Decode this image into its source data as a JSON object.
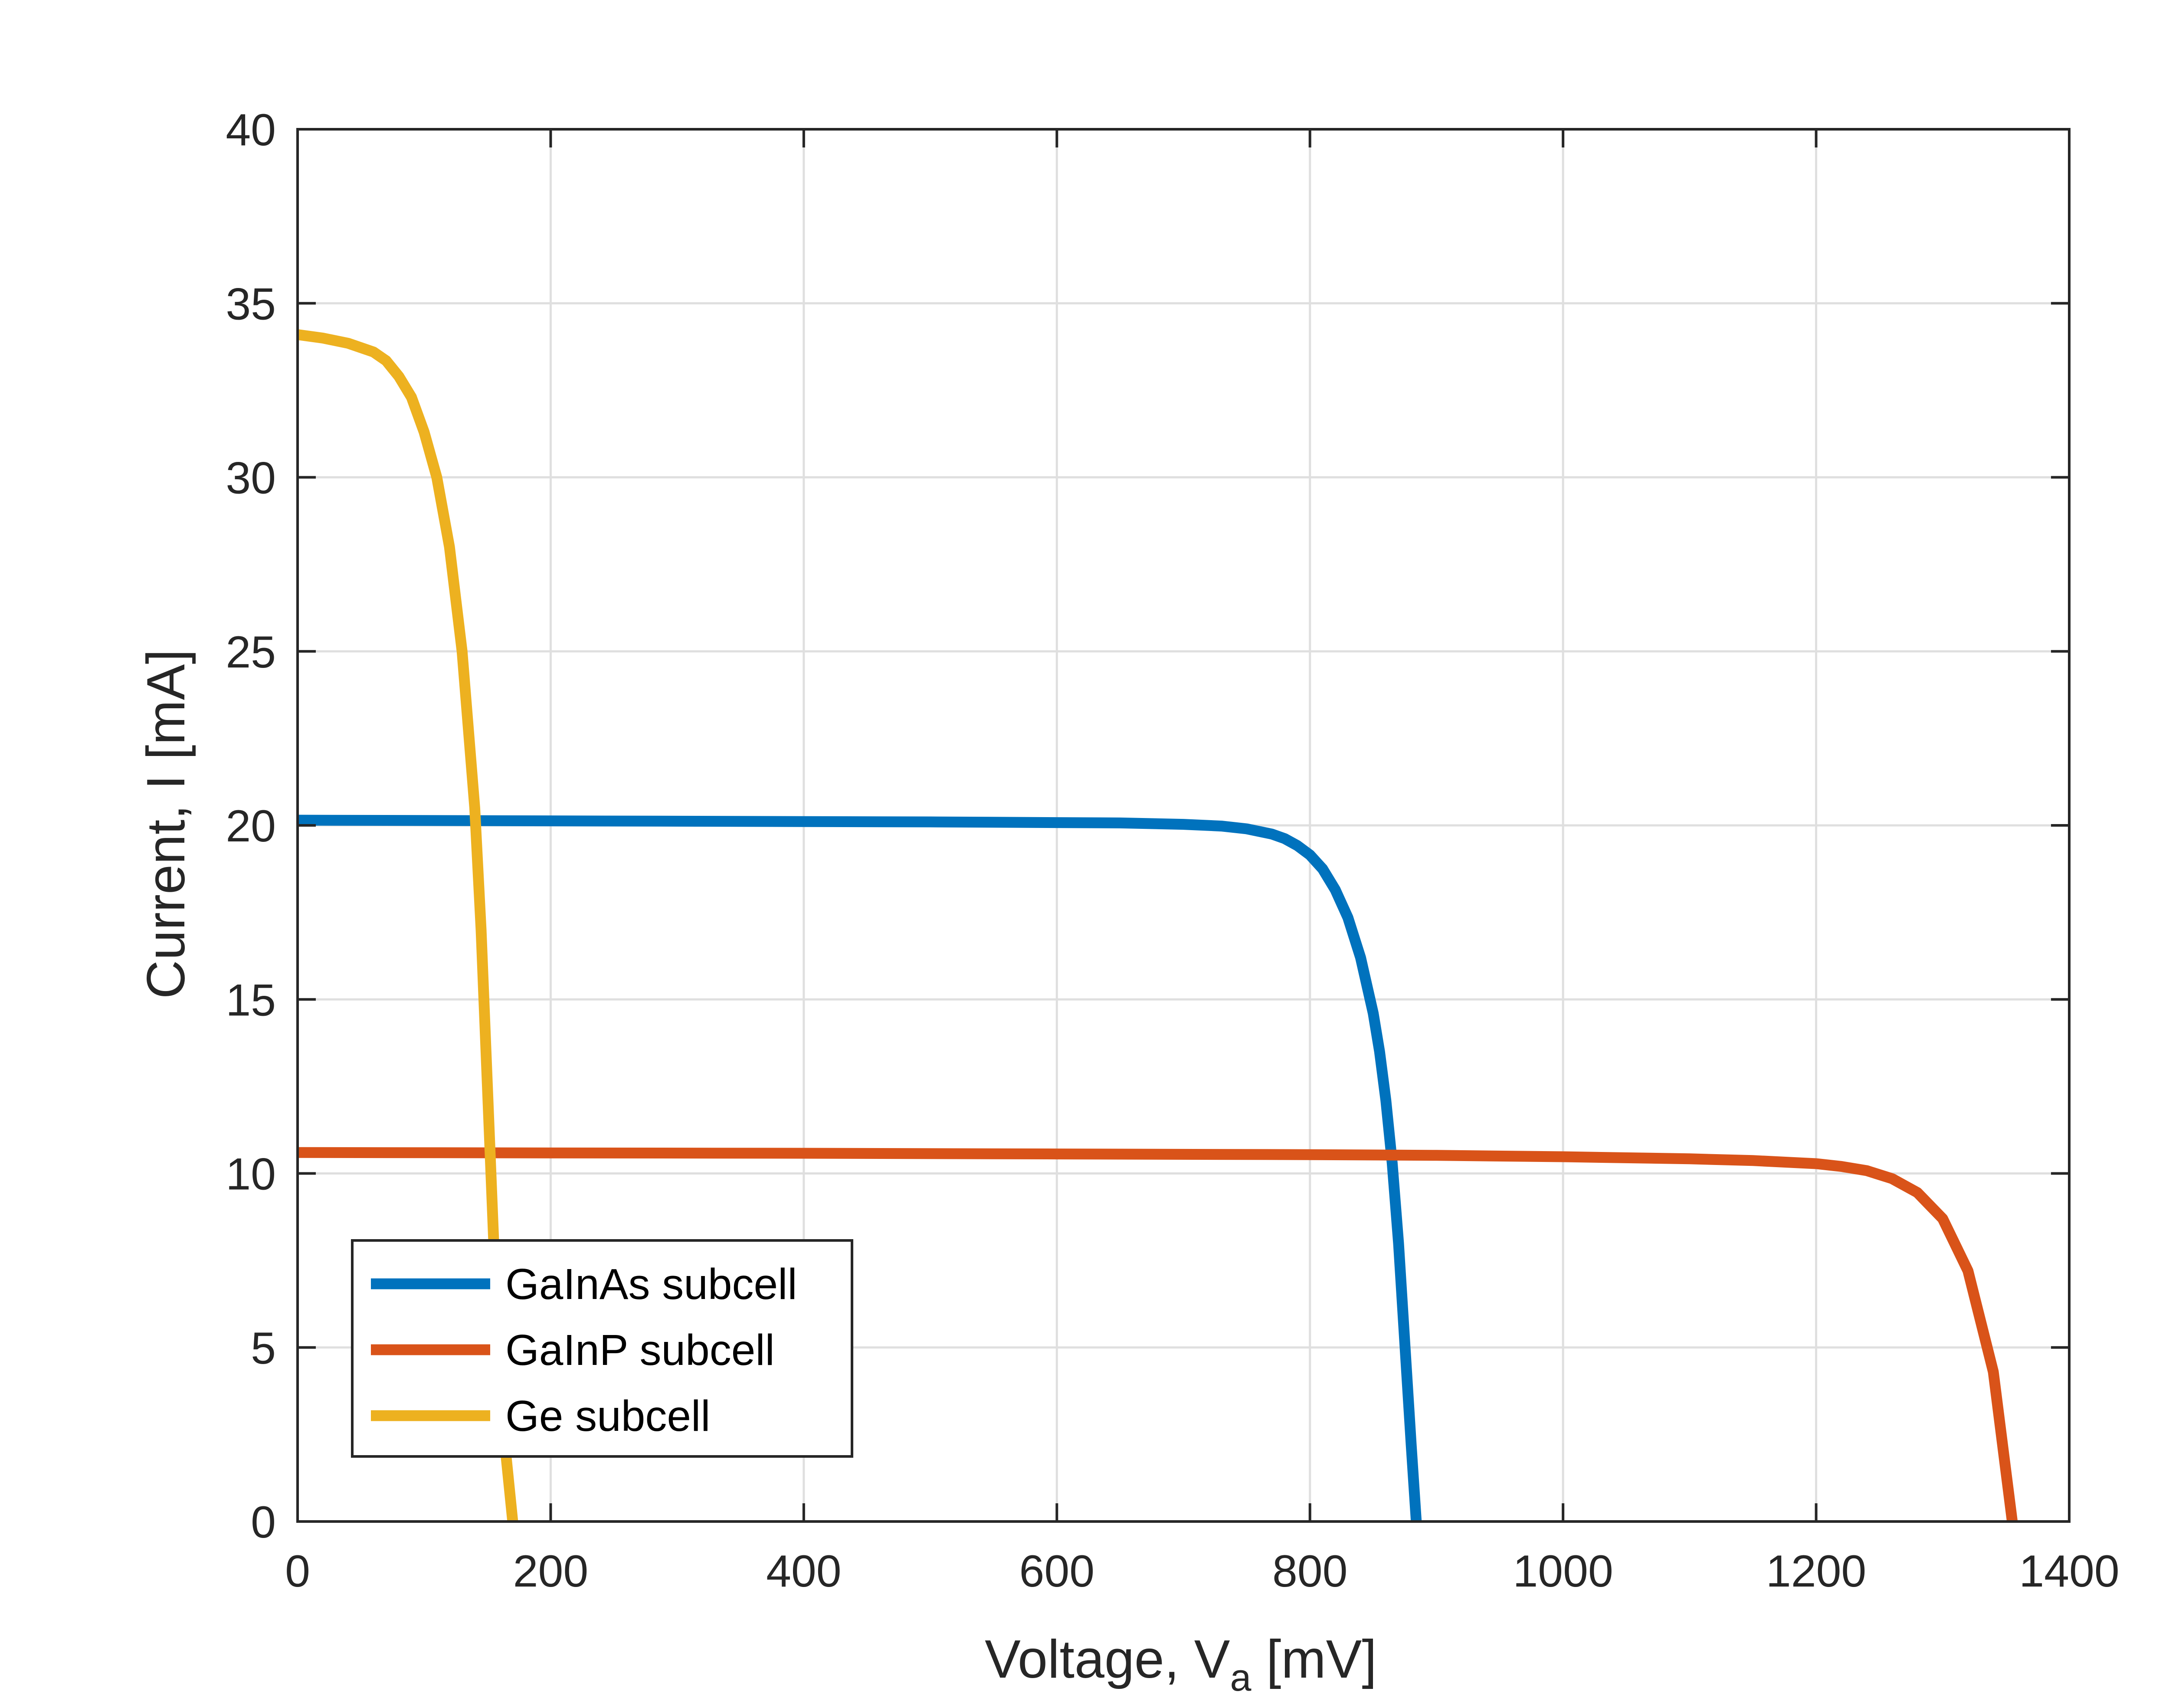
{
  "chart_data": {
    "type": "line",
    "title": "",
    "xlabel": "Voltage, V",
    "xlabel_sub": "a",
    "xlabel_unit": " [mV]",
    "ylabel": "Current, I [mA]",
    "xlim": [
      0,
      1400
    ],
    "ylim": [
      0,
      40
    ],
    "xticks": [
      0,
      200,
      400,
      600,
      800,
      1000,
      1200,
      1400
    ],
    "yticks": [
      0,
      5,
      10,
      15,
      20,
      25,
      30,
      35,
      40
    ],
    "grid": true,
    "legend_position": "bottom-left",
    "series": [
      {
        "name": "GaInAs subcell",
        "color": "#0072BD",
        "x": [
          0,
          100,
          200,
          300,
          400,
          500,
          600,
          650,
          700,
          730,
          750,
          770,
          780,
          790,
          800,
          810,
          820,
          830,
          840,
          850,
          855,
          860,
          865,
          870,
          875,
          880,
          884
        ],
        "y": [
          20.15,
          20.14,
          20.13,
          20.12,
          20.11,
          20.1,
          20.08,
          20.07,
          20.03,
          19.98,
          19.9,
          19.75,
          19.62,
          19.42,
          19.15,
          18.75,
          18.15,
          17.35,
          16.2,
          14.6,
          13.5,
          12.1,
          10.3,
          8.0,
          5.1,
          2.2,
          0
        ]
      },
      {
        "name": "GaInP subcell",
        "color": "#D95319",
        "x": [
          0,
          200,
          400,
          600,
          800,
          900,
          1000,
          1100,
          1150,
          1200,
          1220,
          1240,
          1260,
          1280,
          1300,
          1320,
          1340,
          1355
        ],
        "y": [
          10.6,
          10.59,
          10.58,
          10.56,
          10.54,
          10.52,
          10.48,
          10.42,
          10.37,
          10.28,
          10.2,
          10.08,
          9.85,
          9.45,
          8.7,
          7.2,
          4.3,
          0
        ]
      },
      {
        "name": "Ge subcell",
        "color": "#EDB120",
        "x": [
          0,
          20,
          40,
          60,
          70,
          80,
          90,
          100,
          110,
          120,
          130,
          140,
          145,
          150,
          155,
          160,
          165,
          170
        ],
        "y": [
          34.1,
          34.0,
          33.85,
          33.6,
          33.35,
          32.9,
          32.3,
          31.3,
          30.0,
          28.0,
          25.0,
          20.5,
          17.0,
          12.5,
          8.0,
          4.5,
          1.8,
          0
        ]
      }
    ]
  },
  "colors": {
    "axes": "#262626",
    "grid": "#dfdfdf",
    "legend_border": "#262626"
  }
}
